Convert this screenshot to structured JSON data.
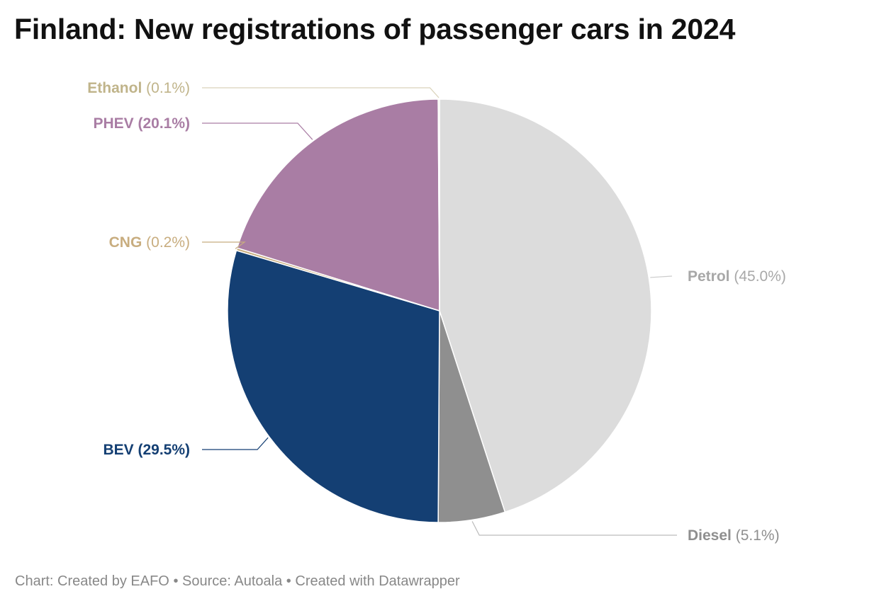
{
  "title": "Finland: New registrations of passenger cars in 2024",
  "footer": {
    "chart": "Chart: Created by EAFO",
    "separator": "•",
    "source": "Source: Autoala",
    "tool": "Created with Datawrapper"
  },
  "chart_data": {
    "type": "pie",
    "title": "Finland: New registrations of passenger cars in 2024",
    "unit": "%",
    "slices": [
      {
        "name": "Petrol",
        "value": 45.0,
        "label": "(45.0%)",
        "color": "#dcdcdc",
        "label_color": "#a8a8a8",
        "bold_pct": false
      },
      {
        "name": "Diesel",
        "value": 5.1,
        "label": "(5.1%)",
        "color": "#8f8f8f",
        "label_color": "#8f8f8f",
        "bold_pct": false
      },
      {
        "name": "BEV",
        "value": 29.5,
        "label": "(29.5%)",
        "color": "#143f73",
        "label_color": "#143f73",
        "bold_pct": true
      },
      {
        "name": "CNG",
        "value": 0.2,
        "label": "(0.2%)",
        "color": "#c8ad7f",
        "label_color": "#c8ad7f",
        "bold_pct": false
      },
      {
        "name": "PHEV",
        "value": 20.1,
        "label": "(20.1%)",
        "color": "#a97da4",
        "label_color": "#a97da4",
        "bold_pct": true
      },
      {
        "name": "Ethanol",
        "value": 0.1,
        "label": "(0.1%)",
        "color": "#e6dcc0",
        "label_color": "#c0b48a",
        "bold_pct": false
      }
    ]
  }
}
